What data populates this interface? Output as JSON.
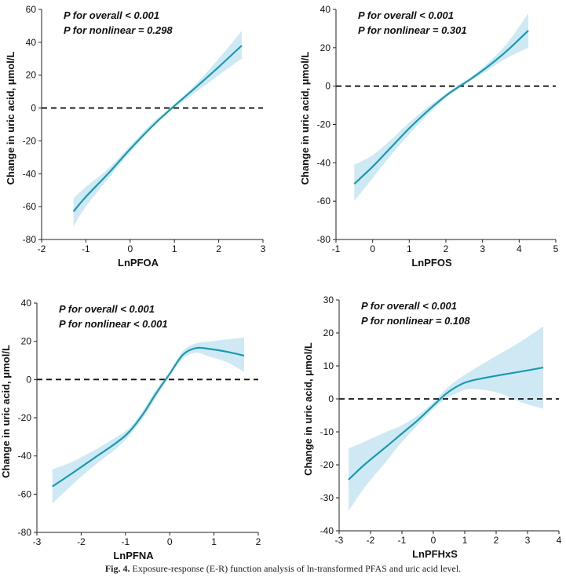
{
  "caption": {
    "label": "Fig. 4.",
    "text": "Exposure-response (E-R) function analysis of ln-transformed PFAS and uric acid level."
  },
  "colors": {
    "line": "#1a9aae",
    "band": "#cfe9f4",
    "reference": "#111111",
    "axis": "#222222"
  },
  "chart_data": [
    {
      "type": "line",
      "xlabel": "LnPFOA",
      "ylabel": "Change in uric acid, μmol/L",
      "xlim": [
        -2,
        3
      ],
      "ylim": [
        -80,
        60
      ],
      "xticks": [
        -2,
        -1,
        0,
        1,
        2,
        3
      ],
      "yticks": [
        -80,
        -60,
        -40,
        -20,
        0,
        20,
        40,
        60
      ],
      "annotations": [
        "P for overall < 0.001",
        "P for nonlinear = 0.298"
      ],
      "reference_line_y": 0,
      "x": [
        -1.28,
        -1.0,
        -0.5,
        0.0,
        0.5,
        0.9,
        1.2,
        1.5,
        2.0,
        2.52
      ],
      "y": [
        -63,
        -54,
        -40,
        -25,
        -11,
        -1,
        6,
        13,
        25,
        38
      ],
      "lower": [
        -72,
        -60,
        -43,
        -27,
        -12,
        -2,
        4,
        10,
        20,
        30
      ],
      "upper": [
        -55,
        -48,
        -37,
        -23,
        -9,
        0,
        7,
        15,
        30,
        47
      ]
    },
    {
      "type": "line",
      "xlabel": "LnPFOS",
      "ylabel": "Change in uric acid, μmol/L",
      "xlim": [
        -1,
        5
      ],
      "ylim": [
        -80,
        40
      ],
      "xticks": [
        -1,
        0,
        1,
        2,
        3,
        4,
        5
      ],
      "yticks": [
        -80,
        -60,
        -40,
        -20,
        0,
        20,
        40
      ],
      "annotations": [
        "P for overall < 0.001",
        "P for nonlinear = 0.301"
      ],
      "reference_line_y": 0,
      "x": [
        -0.5,
        0.0,
        0.5,
        1.0,
        1.5,
        2.0,
        2.3,
        2.7,
        3.2,
        3.7,
        4.25
      ],
      "y": [
        -51,
        -42,
        -32,
        -22,
        -13,
        -5,
        -1,
        4,
        11,
        19,
        29
      ],
      "lower": [
        -60,
        -48,
        -36,
        -25,
        -15,
        -6,
        -2,
        3,
        9,
        15,
        20
      ],
      "upper": [
        -41,
        -36,
        -28,
        -19,
        -11,
        -4,
        0,
        5,
        13,
        23,
        38
      ]
    },
    {
      "type": "line",
      "xlabel": "LnPFNA",
      "ylabel": "Change in uric acid, μmol/L",
      "xlim": [
        -3,
        2
      ],
      "ylim": [
        -80,
        40
      ],
      "xticks": [
        -3,
        -2,
        -1,
        0,
        1,
        2
      ],
      "yticks": [
        -80,
        -60,
        -40,
        -20,
        0,
        20,
        40
      ],
      "annotations": [
        "P for overall < 0.001",
        "P for nonlinear < 0.001"
      ],
      "reference_line_y": 0,
      "x": [
        -2.65,
        -2.2,
        -1.7,
        -1.2,
        -0.9,
        -0.6,
        -0.3,
        0.0,
        0.3,
        0.6,
        0.9,
        1.3,
        1.68
      ],
      "y": [
        -56,
        -49,
        -41,
        -33,
        -27,
        -18,
        -7,
        3,
        13,
        16.5,
        16,
        14.5,
        12.5
      ],
      "lower": [
        -65,
        -55,
        -45,
        -36,
        -29,
        -20,
        -9,
        2,
        11,
        14,
        12,
        9,
        4
      ],
      "upper": [
        -47,
        -43,
        -37,
        -30,
        -25,
        -16,
        -5,
        4,
        15,
        19,
        20,
        21,
        22
      ]
    },
    {
      "type": "line",
      "xlabel": "LnPFHxS",
      "ylabel": "Change in uric acid, μmol/L",
      "xlim": [
        -3,
        4
      ],
      "ylim": [
        -40,
        30
      ],
      "xticks": [
        -3,
        -2,
        -1,
        0,
        1,
        2,
        3,
        4
      ],
      "yticks": [
        -40,
        -30,
        -20,
        -10,
        0,
        10,
        20,
        30
      ],
      "annotations": [
        "P for overall < 0.001",
        "P for nonlinear = 0.108"
      ],
      "reference_line_y": 0,
      "x": [
        -2.7,
        -2.2,
        -1.5,
        -1.0,
        -0.5,
        0.0,
        0.4,
        0.8,
        1.2,
        2.0,
        2.8,
        3.5
      ],
      "y": [
        -24.5,
        -20,
        -14.5,
        -10.5,
        -6.5,
        -2,
        1.5,
        4,
        5.5,
        7,
        8.3,
        9.5
      ],
      "lower": [
        -34,
        -27,
        -19,
        -13,
        -8,
        -3,
        0,
        2,
        3,
        2,
        -1,
        -3
      ],
      "upper": [
        -15,
        -13,
        -10,
        -8,
        -5,
        -1,
        3,
        6,
        8.5,
        13,
        17.5,
        22
      ]
    }
  ]
}
